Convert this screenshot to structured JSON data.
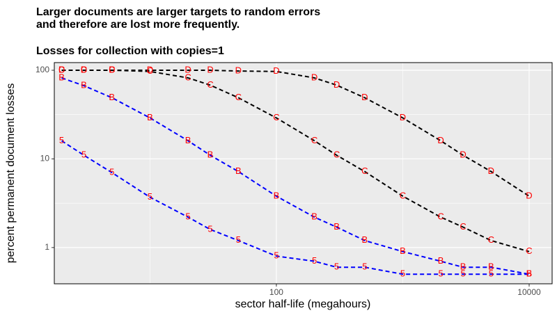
{
  "chart_data": {
    "type": "line",
    "title": "Larger documents are larger targets to random errors",
    "title_line2": "and therefore are lost more frequently.",
    "subtitle": "Losses for collection with copies=1",
    "xlabel": "sector half-life (megahours)",
    "ylabel": "percent permanent document losses",
    "xscale": "log",
    "yscale": "log",
    "grid": true,
    "xlim": [
      1.75,
      15200
    ],
    "ylim": [
      0.39,
      122
    ],
    "xticks": [
      100,
      10000
    ],
    "yticks": [
      1,
      10,
      100
    ],
    "xminor": [
      10,
      1000
    ],
    "yminor": [
      3.162,
      31.62
    ],
    "marker_color": "#ff0000",
    "x": [
      2,
      3,
      5,
      10,
      20,
      30,
      50,
      100,
      200,
      300,
      500,
      1000,
      2000,
      3000,
      5000,
      10000
    ],
    "series": [
      {
        "name": "5",
        "color": "#0000ff",
        "values": [
          16,
          11,
          7,
          3.7,
          2.2,
          1.6,
          1.2,
          0.8,
          0.7,
          0.6,
          0.6,
          0.5,
          0.5,
          0.5,
          0.5,
          0.5
        ]
      },
      {
        "name": "B",
        "color": "#0000ff",
        "values": [
          82,
          67,
          49,
          29,
          16,
          11,
          7.2,
          3.8,
          2.2,
          1.7,
          1.2,
          0.9,
          0.7,
          0.6,
          0.6,
          0.5
        ]
      },
      {
        "name": "C",
        "color": "#000000",
        "values": [
          100,
          100,
          100,
          97,
          82,
          68,
          49,
          29,
          16,
          11,
          7.2,
          3.8,
          2.2,
          1.7,
          1.2,
          0.9
        ]
      },
      {
        "name": "D",
        "color": "#000000",
        "values": [
          100,
          100,
          100,
          100,
          100,
          100,
          98,
          97,
          82,
          68,
          49,
          29,
          16,
          11,
          7.2,
          3.8
        ]
      }
    ]
  }
}
